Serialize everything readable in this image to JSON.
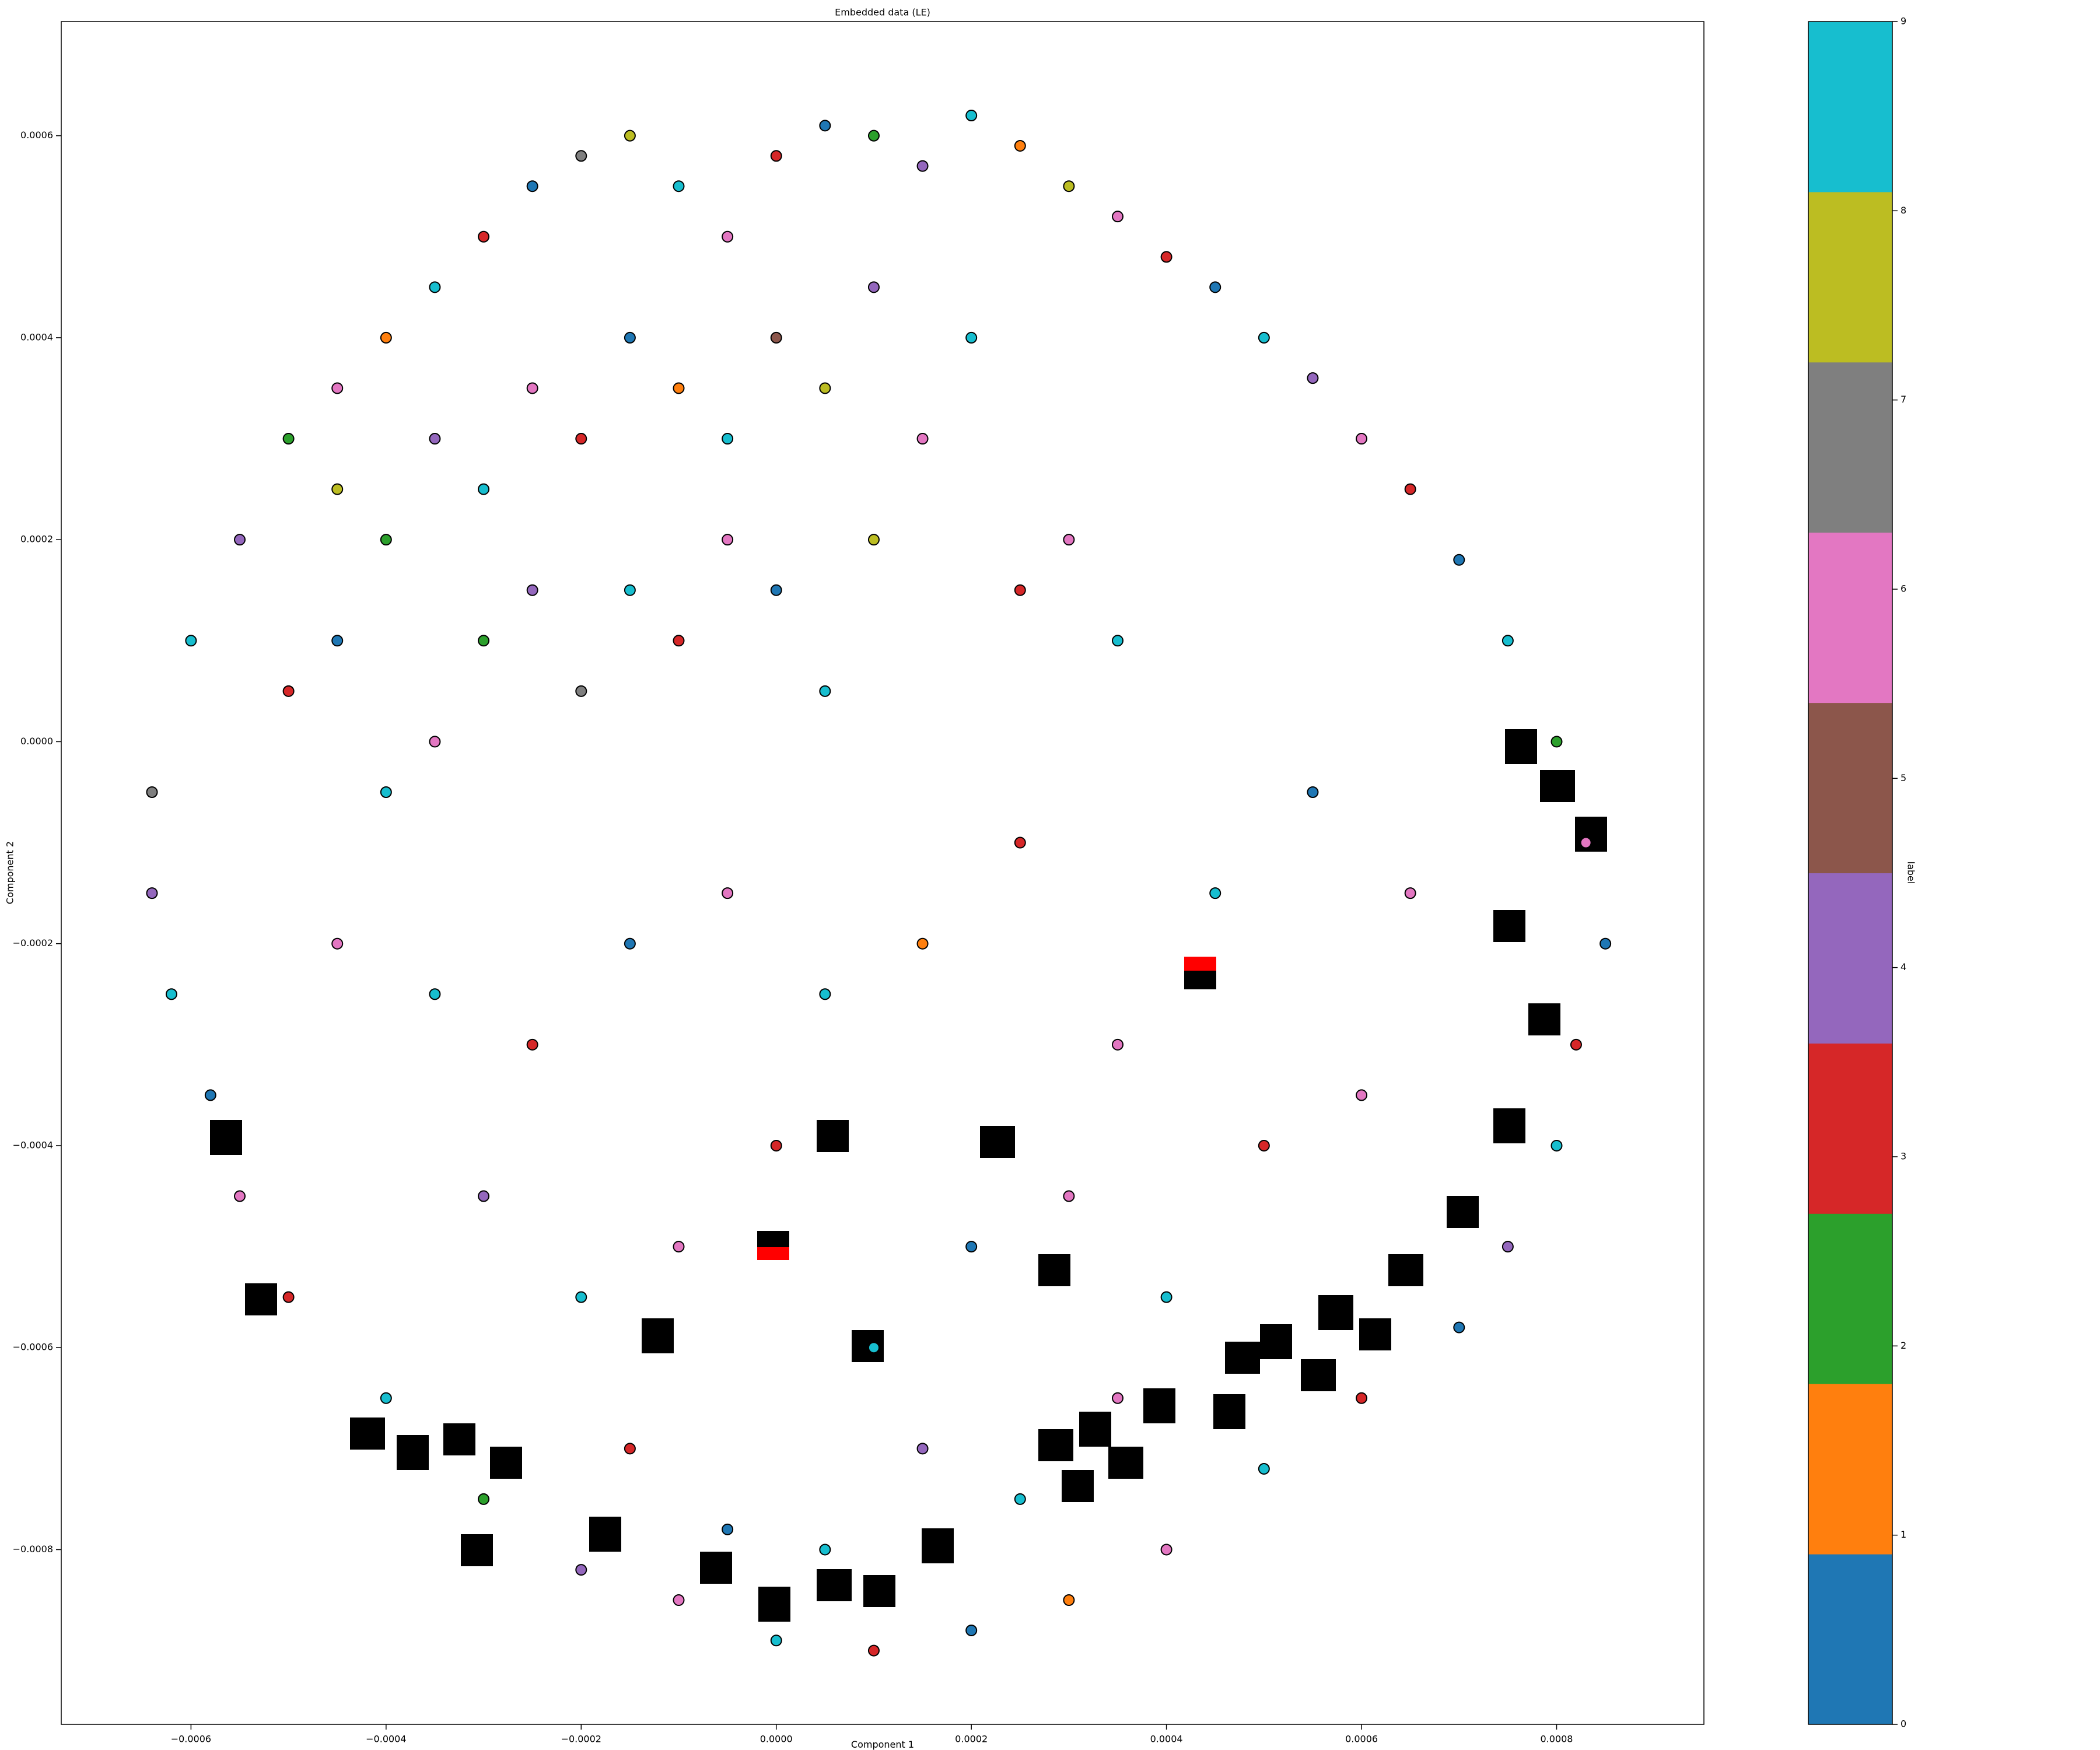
{
  "chart_data": {
    "type": "scatter",
    "title": "Embedded data (LE)",
    "xlabel": "Component 1",
    "ylabel": "Component 2",
    "xlim": [
      -0.000733,
      0.000951
    ],
    "ylim": [
      -0.000973,
      0.000713
    ],
    "xticks": [
      {
        "value": -0.0006,
        "label": "−0.0006"
      },
      {
        "value": -0.0004,
        "label": "−0.0004"
      },
      {
        "value": -0.0002,
        "label": "−0.0002"
      },
      {
        "value": 0,
        "label": "0.0000"
      },
      {
        "value": 0.0002,
        "label": "0.0002"
      },
      {
        "value": 0.0004,
        "label": "0.0004"
      },
      {
        "value": 0.0006,
        "label": "0.0006"
      },
      {
        "value": 0.0008,
        "label": "0.0008"
      }
    ],
    "yticks": [
      {
        "value": -0.0008,
        "label": "−0.0008"
      },
      {
        "value": -0.0006,
        "label": "−0.0006"
      },
      {
        "value": -0.0004,
        "label": "−0.0004"
      },
      {
        "value": -0.0002,
        "label": "−0.0002"
      },
      {
        "value": 0,
        "label": "0.0000"
      },
      {
        "value": 0.0002,
        "label": "0.0002"
      },
      {
        "value": 0.0004,
        "label": "0.0004"
      },
      {
        "value": 0.0006,
        "label": "0.0006"
      }
    ],
    "colormap": [
      "#1f77b4",
      "#ff7f0e",
      "#2ca02c",
      "#d62728",
      "#9467bd",
      "#8c564b",
      "#e377c2",
      "#7f7f7f",
      "#bcbd22",
      "#17becf"
    ],
    "colorbar": {
      "label": "label",
      "lim": [
        0,
        9
      ],
      "ticks": [
        0,
        1,
        2,
        3,
        4,
        5,
        6,
        7,
        8,
        9
      ]
    },
    "x": [
      -0.0006,
      -0.00055,
      -0.0005,
      -0.00045,
      -0.0004,
      -0.00035,
      -0.0003,
      -0.00025,
      -0.0002,
      -0.00015,
      -0.0001,
      -5e-05,
      0,
      5e-05,
      0.0001,
      0.00015,
      0.0002,
      0.00025,
      0.0003,
      0.00035,
      0.0004,
      0.00045,
      0.0005,
      0.00055,
      0.0006,
      0.00065,
      0.0007,
      0.00075,
      0.0008,
      0.00083,
      0.00085,
      0.00082,
      0.0008,
      0.00075,
      0.0007,
      0.0006,
      0.0005,
      0.0004,
      0.0003,
      0.0002,
      0.0001,
      0,
      -0.0001,
      -0.0002,
      -0.0003,
      -0.0004,
      -0.0005,
      -0.00055,
      -0.00058,
      -0.00062,
      -0.00064,
      -0.00064,
      -0.00045,
      -0.0004,
      -0.00035,
      -0.0003,
      -0.00025,
      -0.0002,
      -0.00015,
      -0.0001,
      -5e-05,
      0,
      5e-05,
      0.0001,
      0.00015,
      0.0002,
      -0.0005,
      -0.00045,
      -0.0004,
      -0.00035,
      -0.0003,
      -0.00025,
      -0.0002,
      -0.00015,
      -0.0001,
      -5e-05,
      0,
      5e-05,
      0.0001,
      0.00025,
      0.0003,
      0.00035,
      -0.00045,
      -0.00035,
      -0.00025,
      -0.00015,
      -5e-05,
      5e-05,
      0.00015,
      0.00025,
      0.00035,
      0.00045,
      0.00055,
      0.00065,
      -0.0003,
      -0.0002,
      -0.0001,
      0,
      0.0001,
      0.0002,
      0.0003,
      0.0004,
      0.0005,
      0.0006,
      0.00015,
      0.00025,
      0.00035,
      -0.00015,
      -5e-05,
      5e-05
    ],
    "y": [
      0.0001,
      0.0002,
      0.0003,
      0.00035,
      0.0004,
      0.00045,
      0.0005,
      0.00055,
      0.00058,
      0.0006,
      0.00055,
      0.0005,
      0.00058,
      0.00061,
      0.0006,
      0.00057,
      0.00062,
      0.00059,
      0.00055,
      0.00052,
      0.00048,
      0.00045,
      0.0004,
      0.00036,
      0.0003,
      0.00025,
      0.00018,
      0.0001,
      0,
      -0.0001,
      -0.0002,
      -0.0003,
      -0.0004,
      -0.0005,
      -0.00058,
      -0.00065,
      -0.00072,
      -0.0008,
      -0.00085,
      -0.00088,
      -0.0009,
      -0.00089,
      -0.00085,
      -0.00082,
      -0.00075,
      -0.00065,
      -0.00055,
      -0.00045,
      -0.00035,
      -0.00025,
      -0.00015,
      -5e-05,
      0.00025,
      0.0002,
      0.0003,
      0.00025,
      0.00035,
      0.0003,
      0.0004,
      0.00035,
      0.0003,
      0.0004,
      0.00035,
      0.00045,
      0.0003,
      0.0004,
      5e-05,
      0.0001,
      -5e-05,
      0,
      0.0001,
      0.00015,
      5e-05,
      0.00015,
      0.0001,
      0.0002,
      0.00015,
      5e-05,
      0.0002,
      0.00015,
      0.0002,
      0.0001,
      -0.0002,
      -0.00025,
      -0.0003,
      -0.0002,
      -0.00015,
      -0.00025,
      -0.0002,
      -0.0001,
      -0.0003,
      -0.00015,
      -5e-05,
      -0.00015,
      -0.00045,
      -0.00055,
      -0.0005,
      -0.0004,
      -0.0006,
      -0.0005,
      -0.00045,
      -0.00055,
      -0.0004,
      -0.00035,
      -0.0007,
      -0.00075,
      -0.00065,
      -0.0007,
      -0.00078,
      -0.0008
    ],
    "labels": [
      9,
      4,
      2,
      6,
      1,
      9,
      3,
      0,
      7,
      8,
      9,
      6,
      3,
      0,
      2,
      4,
      9,
      1,
      8,
      6,
      3,
      0,
      9,
      4,
      6,
      3,
      0,
      9,
      2,
      6,
      0,
      3,
      9,
      4,
      0,
      3,
      9,
      6,
      1,
      0,
      3,
      9,
      6,
      4,
      2,
      9,
      3,
      6,
      0,
      9,
      4,
      7,
      8,
      2,
      4,
      9,
      6,
      3,
      0,
      1,
      9,
      5,
      8,
      4,
      6,
      9,
      3,
      0,
      9,
      6,
      2,
      4,
      7,
      9,
      3,
      6,
      0,
      9,
      8,
      3,
      6,
      9,
      6,
      9,
      3,
      0,
      6,
      9,
      1,
      3,
      6,
      9,
      0,
      6,
      4,
      9,
      6,
      3,
      9,
      0,
      6,
      9,
      3,
      6,
      4,
      9,
      6,
      3,
      0,
      9
    ]
  }
}
